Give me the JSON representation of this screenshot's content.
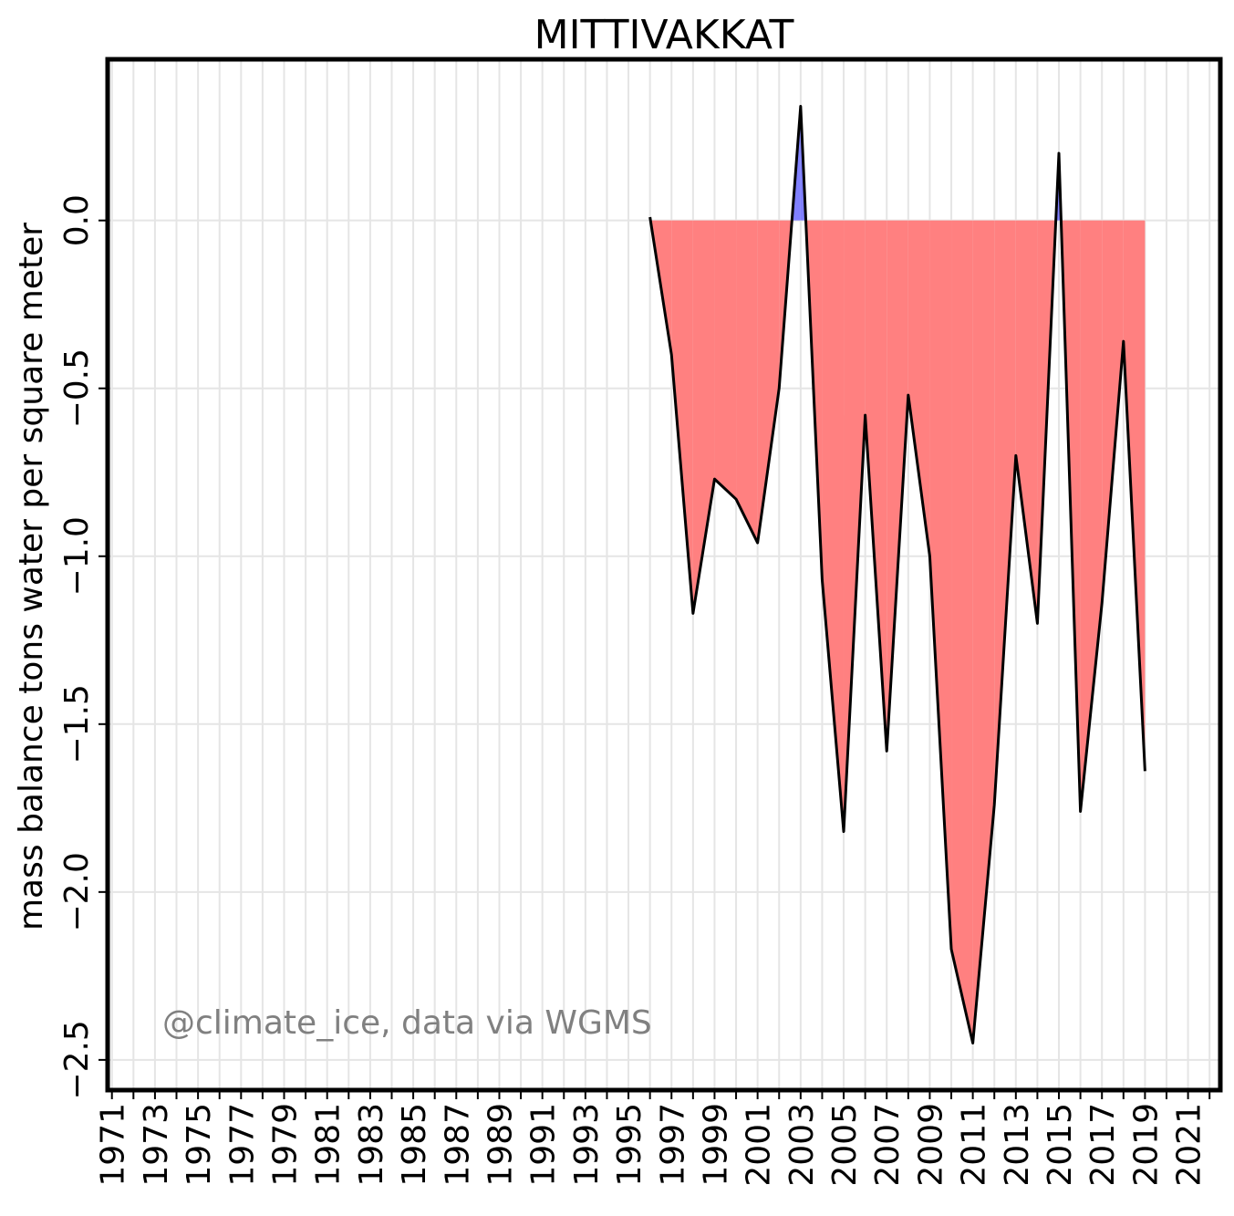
{
  "chart_data": {
    "type": "area",
    "title": "MITTIVAKKAT",
    "xlabel": "",
    "ylabel": "mass balance tons water per square meter",
    "credit": "@climate_ice, data via WGMS",
    "xlim": [
      1970.8,
      2022.5
    ],
    "ylim": [
      -2.59,
      0.48
    ],
    "x_ticks": [
      1971,
      1973,
      1975,
      1977,
      1979,
      1981,
      1983,
      1985,
      1987,
      1989,
      1991,
      1993,
      1995,
      1997,
      1999,
      2001,
      2003,
      2005,
      2007,
      2009,
      2011,
      2013,
      2015,
      2017,
      2019,
      2021
    ],
    "y_ticks": [
      0.0,
      -0.5,
      -1.0,
      -1.5,
      -2.0,
      -2.5
    ],
    "y_tick_labels": [
      "0.0",
      "−0.5",
      "−1.0",
      "−1.5",
      "−2.0",
      "−2.5"
    ],
    "grid": true,
    "colors": {
      "positive_fill": "#8080ff",
      "negative_fill": "#ff8080",
      "line": "#000000",
      "grid": "#e5e5e5",
      "credit": "#808080"
    },
    "series": [
      {
        "x": [
          1996,
          1997,
          1998,
          1999,
          2000,
          2001,
          2002,
          2003,
          2004,
          2005,
          2006,
          2007,
          2008,
          2009,
          2010,
          2011,
          2012,
          2013,
          2014,
          2015,
          2016,
          2017,
          2018,
          2019
        ],
        "values": [
          0.01,
          -0.4,
          -1.17,
          -0.77,
          -0.83,
          -0.96,
          -0.5,
          0.34,
          -1.07,
          -1.82,
          -0.58,
          -1.58,
          -0.52,
          -1.0,
          -2.17,
          -2.45,
          -1.74,
          -0.7,
          -1.2,
          0.2,
          -1.76,
          -1.14,
          -0.36,
          -1.64
        ]
      }
    ]
  }
}
